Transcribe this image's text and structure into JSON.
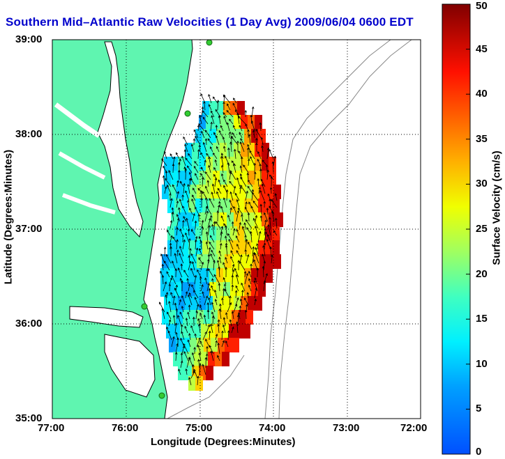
{
  "title": "Southern Mid–Atlantic Raw Velocities (1 Day Avg) 2009/06/04 0600 EDT",
  "xlabel": "Longitude (Degrees:Minutes)",
  "ylabel": "Latitude (Degrees:Minutes)",
  "x_ticks": [
    "77:00",
    "76:00",
    "75:00",
    "74:00",
    "73:00",
    "72:00"
  ],
  "y_ticks": [
    "39:00",
    "38:00",
    "37:00",
    "36:00",
    "35:00"
  ],
  "colorbar": {
    "label": "Surface Velocity (cm/s)",
    "ticks": [
      "0",
      "5",
      "10",
      "15",
      "20",
      "25",
      "30",
      "35",
      "40",
      "45",
      "50"
    ],
    "range": [
      0,
      50
    ]
  },
  "colors": {
    "land": "#5ff5b0",
    "title": "#0000cc",
    "coastline": "#000000",
    "bathymetry": "#888888",
    "station": "#33cc33"
  }
}
